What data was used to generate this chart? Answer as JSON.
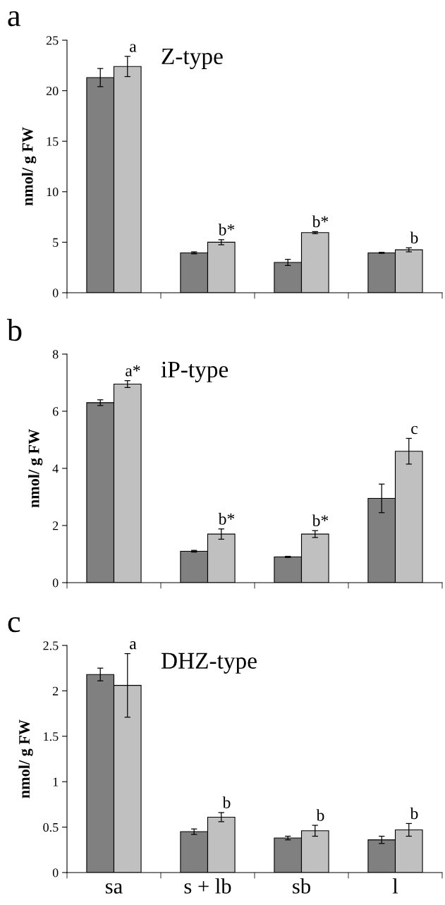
{
  "chart_data": [
    {
      "type": "bar",
      "title": "a",
      "ylabel": "nmol/ g FW",
      "categories": [
        "sa",
        "s + lb",
        "sb",
        "l"
      ],
      "tick_labels": "y",
      "series": [
        {
          "color": "#808080",
          "values": [
            21.3,
            3.95,
            3.0,
            3.95
          ],
          "errors": [
            0.9,
            0.1,
            0.3,
            0.05
          ]
        },
        {
          "color": "#c0c0c0",
          "values": [
            22.4,
            5.0,
            5.95,
            4.25
          ],
          "errors": [
            1.0,
            0.25,
            0.1,
            0.2
          ]
        }
      ],
      "ylim": [
        0,
        25
      ],
      "yticks": [
        0,
        5,
        10,
        15,
        20,
        25
      ],
      "grid": false,
      "legend": false,
      "annotations": [
        "Z-type",
        {
          "text": "a",
          "x": "sa",
          "y": 22.4
        },
        {
          "text": "b*",
          "x": "s + lb",
          "y": 5.0
        },
        {
          "text": "b*",
          "x": "sb",
          "y": 5.95
        },
        {
          "text": "b",
          "x": "l",
          "y": 4.25
        }
      ]
    },
    {
      "type": "bar",
      "title": "b",
      "ylabel": "nmol/ g FW",
      "categories": [
        "sa",
        "s + lb",
        "sb",
        "l"
      ],
      "tick_labels": "y",
      "series": [
        {
          "color": "#808080",
          "values": [
            6.3,
            1.1,
            0.9,
            2.95
          ],
          "errors": [
            0.1,
            0.03,
            0.02,
            0.5
          ]
        },
        {
          "color": "#c0c0c0",
          "values": [
            6.95,
            1.7,
            1.7,
            4.6
          ],
          "errors": [
            0.12,
            0.18,
            0.12,
            0.45
          ]
        }
      ],
      "ylim": [
        0,
        8
      ],
      "yticks": [
        0,
        2,
        4,
        6,
        8
      ],
      "grid": false,
      "legend": false,
      "annotations": [
        "iP-type",
        {
          "text": "a*",
          "x": "sa",
          "y": 6.95
        },
        {
          "text": "b*",
          "x": "s + lb",
          "y": 1.7
        },
        {
          "text": "b*",
          "x": "sb",
          "y": 1.7
        },
        {
          "text": "c",
          "x": "l",
          "y": 4.6
        }
      ]
    },
    {
      "type": "bar",
      "title": "c",
      "ylabel": "nmol/ g FW",
      "categories": [
        "sa",
        "s + lb",
        "sb",
        "l"
      ],
      "series": [
        {
          "color": "#808080",
          "values": [
            2.18,
            0.45,
            0.38,
            0.36
          ],
          "errors": [
            0.07,
            0.03,
            0.02,
            0.04
          ]
        },
        {
          "color": "#c0c0c0",
          "values": [
            2.06,
            0.61,
            0.46,
            0.47
          ],
          "errors": [
            0.35,
            0.05,
            0.06,
            0.07
          ]
        }
      ],
      "ylim": [
        0,
        2.5
      ],
      "yticks": [
        0,
        0.5,
        1,
        1.5,
        2,
        2.5
      ],
      "grid": false,
      "legend": false,
      "annotations": [
        "DHZ-type",
        {
          "text": "a",
          "x": "sa",
          "y": 2.06
        },
        {
          "text": "b",
          "x": "s + lb",
          "y": 0.61
        },
        {
          "text": "b",
          "x": "sb",
          "y": 0.46
        },
        {
          "text": "b",
          "x": "l",
          "y": 0.47
        }
      ]
    }
  ]
}
